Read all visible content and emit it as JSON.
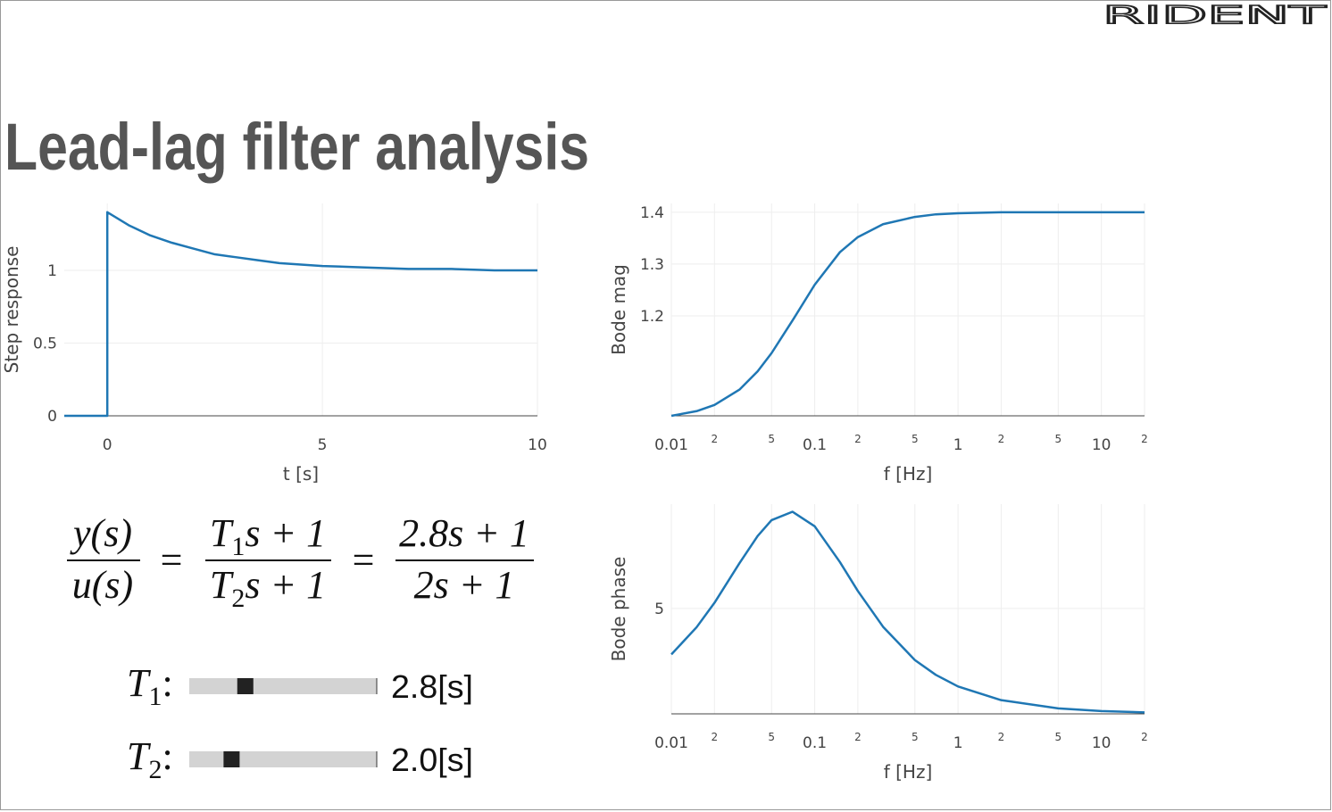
{
  "logo": "RIDENT",
  "title": "Lead-lag filter analysis",
  "chart_data": [
    {
      "type": "line",
      "x": [
        -1,
        0,
        0,
        0.5,
        1,
        1.5,
        2,
        2.5,
        3,
        3.5,
        4,
        5,
        6,
        7,
        8,
        9,
        10
      ],
      "values": [
        0,
        0,
        1.4,
        1.31,
        1.24,
        1.19,
        1.15,
        1.11,
        1.09,
        1.07,
        1.05,
        1.03,
        1.02,
        1.01,
        1.01,
        1.0,
        1.0
      ],
      "color": "#1f77b4",
      "xlim": [
        -1,
        10
      ],
      "ylim": [
        0,
        1.46
      ],
      "xticks": [
        0,
        5,
        10
      ],
      "yticks": [
        0,
        0.5,
        1
      ],
      "xlabel": "t [s]",
      "ylabel": "Step response",
      "grid": true
    },
    {
      "type": "line",
      "xscale": "log",
      "x": [
        0.01,
        0.015,
        0.02,
        0.03,
        0.04,
        0.05,
        0.07,
        0.1,
        0.15,
        0.2,
        0.3,
        0.5,
        0.7,
        1,
        2,
        5,
        10,
        20
      ],
      "values": [
        1.007,
        1.016,
        1.028,
        1.058,
        1.093,
        1.128,
        1.191,
        1.26,
        1.323,
        1.352,
        1.377,
        1.391,
        1.396,
        1.398,
        1.4,
        1.4,
        1.4,
        1.4
      ],
      "color": "#1f77b4",
      "xlim": [
        0.01,
        20
      ],
      "ylim": [
        1.007,
        1.417
      ],
      "xticks": [
        0.01,
        {
          "value": 0.02,
          "label": "2"
        },
        {
          "value": 0.05,
          "label": "5"
        },
        0.1,
        {
          "value": 0.2,
          "label": "2"
        },
        {
          "value": 0.5,
          "label": "5"
        },
        1,
        {
          "value": 2,
          "label": "2"
        },
        {
          "value": 5,
          "label": "5"
        },
        10,
        {
          "value": 20,
          "label": "2"
        }
      ],
      "yticks": [
        1.2,
        1.3,
        1.4
      ],
      "xlabel": "f [Hz]",
      "ylabel": "Bode mag",
      "grid": true
    },
    {
      "type": "line",
      "xscale": "log",
      "x": [
        0.01,
        0.015,
        0.02,
        0.03,
        0.04,
        0.05,
        0.07,
        0.1,
        0.15,
        0.2,
        0.3,
        0.5,
        0.7,
        1,
        2,
        5,
        10,
        20
      ],
      "values": [
        2.82,
        4.11,
        5.27,
        7.17,
        8.44,
        9.19,
        9.59,
        8.9,
        7.2,
        5.83,
        4.13,
        2.55,
        1.85,
        1.3,
        0.65,
        0.26,
        0.13,
        0.07
      ],
      "color": "#1f77b4",
      "xlim": [
        0.01,
        20
      ],
      "ylim": [
        0,
        9.95
      ],
      "xticks": [
        0.01,
        {
          "value": 0.02,
          "label": "2"
        },
        {
          "value": 0.05,
          "label": "5"
        },
        0.1,
        {
          "value": 0.2,
          "label": "2"
        },
        {
          "value": 0.5,
          "label": "5"
        },
        1,
        {
          "value": 2,
          "label": "2"
        },
        {
          "value": 5,
          "label": "5"
        },
        10,
        {
          "value": 20,
          "label": "2"
        }
      ],
      "yticks": [
        5
      ],
      "xlabel": "f [Hz]",
      "ylabel": "Bode phase",
      "grid": true
    }
  ],
  "formula": {
    "equals": "=",
    "lhs": {
      "num": "y(s)",
      "den": "u(s)"
    },
    "mid": {
      "num": {
        "symbol": "T",
        "sub": "1",
        "rest": "s + 1"
      },
      "den": {
        "symbol": "T",
        "sub": "2",
        "rest": "s + 1"
      }
    },
    "rhs": {
      "num": "2.8s + 1",
      "den": "2s + 1"
    }
  },
  "slider_range": [
    0,
    10
  ],
  "label_suffix": ":",
  "sliders": [
    {
      "symbol": "T",
      "sub": "1",
      "value": 2.8,
      "value_label": "2.8[s]"
    },
    {
      "symbol": "T",
      "sub": "2",
      "value": 2.0,
      "value_label": "2.0[s]"
    }
  ]
}
